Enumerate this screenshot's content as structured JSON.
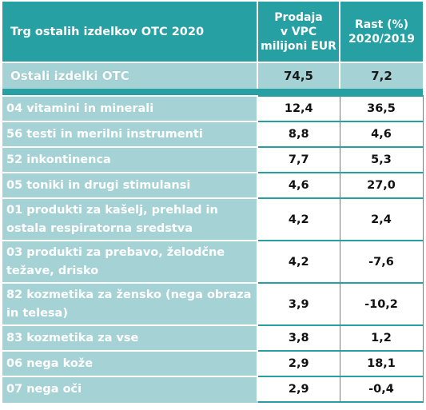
{
  "header": {
    "title": "Trg ostalih izdelkov OTC 2020",
    "col_sales_line1": "Prodaja",
    "col_sales_line2": "v VPC",
    "col_sales_line3": "milijoni EUR",
    "col_growth_line1": "Rast (%)",
    "col_growth_line2": "2020/2019"
  },
  "summary": {
    "label": "Ostali izdelki OTC",
    "sales": "74,5",
    "growth": "7,2"
  },
  "rows": [
    {
      "label": "04 vitamini in minerali",
      "sales": "12,4",
      "growth": "36,5"
    },
    {
      "label": "56 testi in merilni instrumenti",
      "sales": "8,8",
      "growth": "4,6"
    },
    {
      "label": "52 inkontinenca",
      "sales": "7,7",
      "growth": "5,3"
    },
    {
      "label": "05 toniki in drugi stimulansi",
      "sales": "4,6",
      "growth": "27,0"
    },
    {
      "label": "01 produkti za kašelj, prehlad in ostala respiratorna sredstva",
      "sales": "4,2",
      "growth": "2,4"
    },
    {
      "label": "03 produkti za prebavo, želodčne težave, drisko",
      "sales": "4,2",
      "growth": "-7,6"
    },
    {
      "label": "82 kozmetika za žensko (nega obraza in telesa)",
      "sales": "3,9",
      "growth": "-10,2"
    },
    {
      "label": "83 kozmetika za vse",
      "sales": "3,8",
      "growth": "1,2"
    },
    {
      "label": "06 nega kože",
      "sales": "2,9",
      "growth": "18,1"
    },
    {
      "label": "07 nega oči",
      "sales": "2,9",
      "growth": "-0,4"
    }
  ],
  "colors": {
    "header_teal": "#27a0a4",
    "label_light_teal": "#a5d2d4",
    "text_white": "#ffffff",
    "text_dark": "#111111"
  }
}
